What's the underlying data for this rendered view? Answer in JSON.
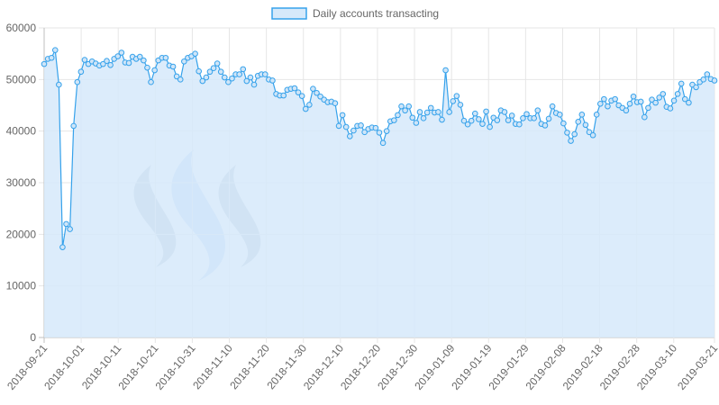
{
  "chart_data": {
    "type": "area",
    "title": "",
    "xlabel": "",
    "ylabel": "",
    "ylim": [
      0,
      60000
    ],
    "y_ticks": [
      "0",
      "10000",
      "20000",
      "30000",
      "40000",
      "50000",
      "60000"
    ],
    "x_start": "2018-09-21",
    "x_end": "2019-03-21",
    "x_ticks": [
      "2018-09-21",
      "2018-10-01",
      "2018-10-11",
      "2018-10-21",
      "2018-10-31",
      "2018-11-10",
      "2018-11-20",
      "2018-11-30",
      "2018-12-10",
      "2018-12-20",
      "2018-12-30",
      "2019-01-09",
      "2019-01-19",
      "2019-01-29",
      "2019-02-08",
      "2019-02-18",
      "2019-02-28",
      "2019-03-10",
      "2019-03-21"
    ],
    "grid": true,
    "legend_position": "top-center",
    "series": [
      {
        "name": "Daily accounts transacting",
        "line_color": "#36a2eb",
        "fill_color": "#d6e9fa",
        "values": [
          53000,
          54000,
          54200,
          55700,
          49000,
          17500,
          22000,
          21000,
          41000,
          49500,
          51500,
          53800,
          53000,
          53500,
          53100,
          52700,
          53000,
          53600,
          52800,
          54000,
          54500,
          55200,
          53300,
          53200,
          54400,
          54000,
          54400,
          53700,
          52300,
          49500,
          51800,
          53700,
          54200,
          54200,
          52700,
          52500,
          50600,
          50000,
          53500,
          54200,
          54500,
          55000,
          51600,
          49700,
          50400,
          51500,
          52200,
          53100,
          51500,
          50400,
          49500,
          50200,
          51000,
          51000,
          52000,
          49700,
          50400,
          49000,
          50700,
          51000,
          51000,
          50000,
          49800,
          47200,
          46900,
          46900,
          48000,
          48200,
          48300,
          47500,
          46800,
          44300,
          45100,
          48200,
          47400,
          46700,
          46100,
          45600,
          45700,
          45400,
          41000,
          43100,
          40800,
          39000,
          40100,
          41000,
          41100,
          39800,
          40400,
          40700,
          40600,
          39700,
          37700,
          40000,
          41900,
          42100,
          43100,
          44800,
          44000,
          44800,
          42600,
          41600,
          43700,
          42500,
          43600,
          44500,
          43600,
          43700,
          42200,
          51800,
          43700,
          45800,
          46800,
          45100,
          42000,
          41300,
          42000,
          43400,
          42300,
          41400,
          43800,
          40800,
          42600,
          42100,
          44000,
          43700,
          42100,
          43000,
          41400,
          41300,
          42500,
          43300,
          42500,
          42500,
          44000,
          41400,
          41100,
          42400,
          44800,
          43500,
          43200,
          41500,
          39700,
          38100,
          39400,
          41800,
          43200,
          41200,
          39800,
          39200,
          43200,
          45300,
          46200,
          44800,
          45900,
          46200,
          45000,
          44500,
          44000,
          45300,
          46700,
          45600,
          45700,
          42700,
          44500,
          46100,
          45500,
          46500,
          47200,
          44700,
          44400,
          45900,
          47200,
          49200,
          46200,
          45500,
          49000,
          48500,
          49500,
          50000,
          51000,
          50100,
          49800
        ]
      }
    ]
  }
}
